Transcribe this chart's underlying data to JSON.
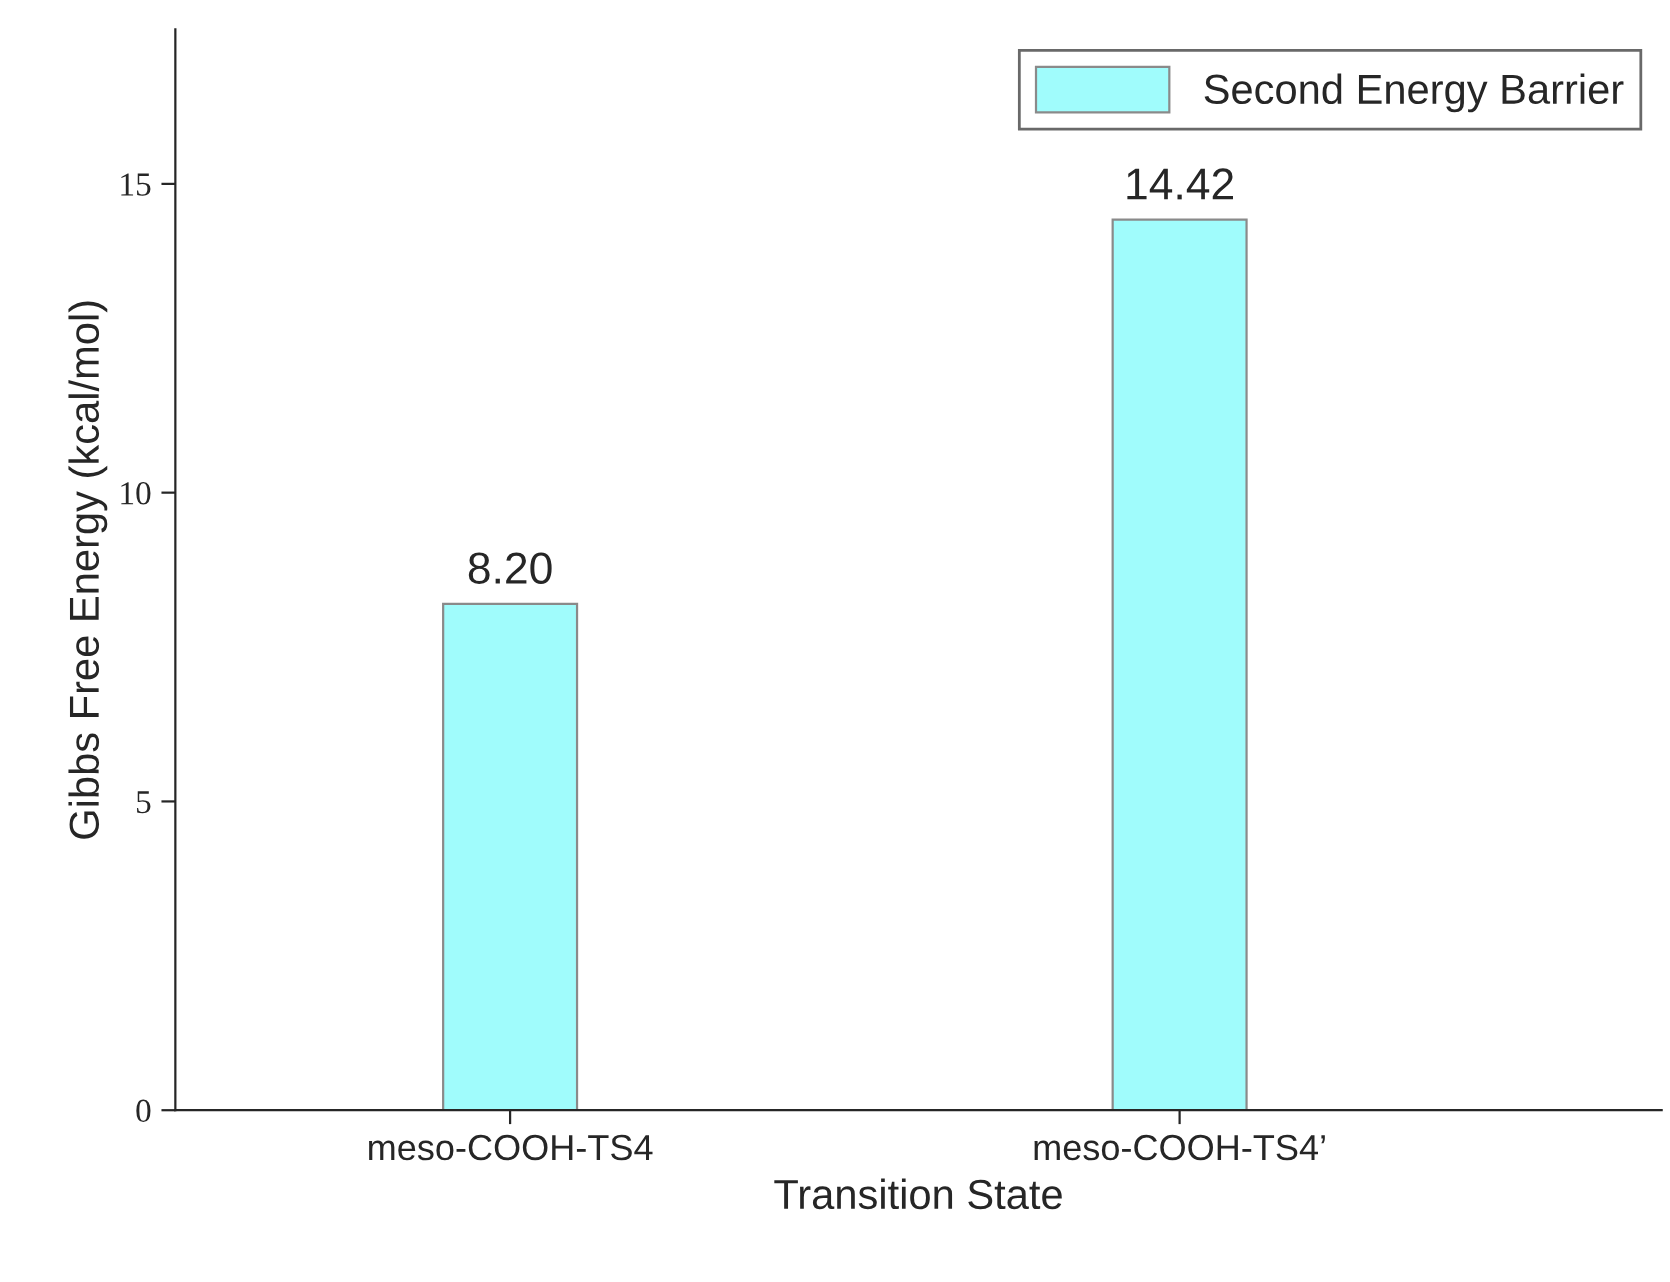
{
  "chart_data": {
    "type": "bar",
    "xlabel": "Transition State",
    "ylabel": "Gibbs Free Energy (kcal/mol)",
    "categories": [
      "meso-COOH-TS4",
      "meso-COOH-TS4’"
    ],
    "series": [
      {
        "name": "Second Energy Barrier",
        "color": "#a0fcfc",
        "values": [
          8.2,
          14.42
        ],
        "value_labels": [
          "8.20",
          "14.42"
        ]
      }
    ],
    "ylim": [
      0,
      17.5
    ],
    "yticks": [
      0,
      5,
      10,
      15
    ],
    "grid": false,
    "legend": "top right"
  }
}
